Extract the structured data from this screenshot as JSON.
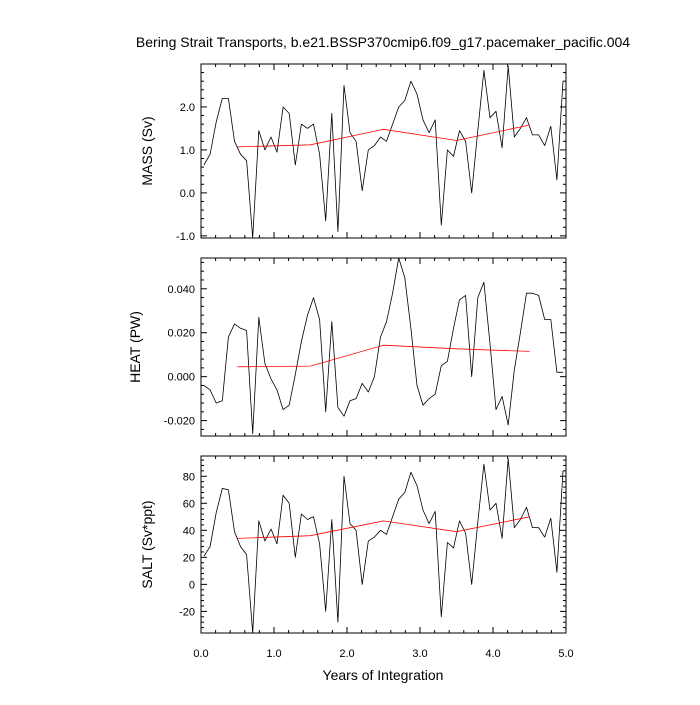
{
  "title": "Bering Strait Transports, b.e21.BSSP370cmip6.f09_g17.pacemaker_pacific.004",
  "xlabel": "Years of Integration",
  "colors": {
    "raw": "#000000",
    "smoothed": "#ff0000",
    "frame": "#000000"
  },
  "chart_data": {
    "type": "line",
    "title": "Bering Strait Transports, b.e21.BSSP370cmip6.f09_g17.pacemaker_pacific.004",
    "xlabel": "Years of Integration",
    "xlim": [
      0.0,
      5.0
    ],
    "x_ticks": [
      0.0,
      1.0,
      2.0,
      3.0,
      4.0,
      5.0
    ],
    "x_tick_labels": [
      "0.0",
      "1.0",
      "2.0",
      "3.0",
      "4.0",
      "5.0"
    ],
    "x": [
      0.0417,
      0.125,
      0.2083,
      0.2917,
      0.375,
      0.4583,
      0.5417,
      0.625,
      0.7083,
      0.7917,
      0.875,
      0.9583,
      1.0417,
      1.125,
      1.2083,
      1.2917,
      1.375,
      1.4583,
      1.5417,
      1.625,
      1.7083,
      1.7917,
      1.875,
      1.9583,
      2.0417,
      2.125,
      2.2083,
      2.2917,
      2.375,
      2.4583,
      2.5417,
      2.625,
      2.7083,
      2.7917,
      2.875,
      2.9583,
      3.0417,
      3.125,
      3.2083,
      3.2917,
      3.375,
      3.4583,
      3.5417,
      3.625,
      3.7083,
      3.7917,
      3.875,
      3.9583,
      4.0417,
      4.125,
      4.2083,
      4.2917,
      4.375,
      4.4583,
      4.5417,
      4.625,
      4.7083,
      4.7917,
      4.875,
      4.9583
    ],
    "panels": [
      {
        "ylabel": "MASS (Sv)",
        "ylim": [
          -1.05,
          3.0
        ],
        "y_ticks": [
          -1.0,
          0.0,
          1.0,
          2.0
        ],
        "y_tick_labels": [
          "-1.0",
          "0.0",
          "1.0",
          "2.0"
        ],
        "series": [
          {
            "values": [
              0.65,
              0.9,
              1.65,
              2.2,
              2.2,
              1.2,
              0.9,
              0.75,
              -1.05,
              1.45,
              1.0,
              1.3,
              0.95,
              2.0,
              1.85,
              0.65,
              1.6,
              1.5,
              1.6,
              0.9,
              -0.65,
              1.85,
              -0.9,
              2.5,
              1.4,
              1.2,
              0.05,
              1.0,
              1.1,
              1.3,
              1.2,
              1.6,
              2.0,
              2.15,
              2.6,
              2.3,
              1.7,
              1.4,
              1.7,
              -0.75,
              1.0,
              0.85,
              1.45,
              1.2,
              0.0,
              1.45,
              2.85,
              1.75,
              1.9,
              1.05,
              2.95,
              1.3,
              1.5,
              1.75,
              1.35,
              1.35,
              1.1,
              1.55,
              0.3,
              2.6
            ]
          }
        ],
        "smoothed": {
          "x": [
            0.5,
            1.5,
            2.5,
            3.5,
            4.5
          ],
          "values": [
            1.07,
            1.12,
            1.48,
            1.22,
            1.58
          ]
        }
      },
      {
        "ylabel": "HEAT (PW)",
        "ylim": [
          -0.027,
          0.054
        ],
        "y_ticks": [
          -0.02,
          0.0,
          0.02,
          0.04
        ],
        "y_tick_labels": [
          "-0.020",
          "0.000",
          "0.020",
          "0.040"
        ],
        "series": [
          {
            "values": [
              -0.004,
              -0.006,
              -0.012,
              -0.011,
              0.018,
              0.024,
              0.022,
              0.021,
              -0.026,
              0.027,
              0.006,
              -0.001,
              -0.006,
              -0.015,
              -0.013,
              0.001,
              0.016,
              0.028,
              0.036,
              0.026,
              -0.016,
              0.025,
              -0.014,
              -0.018,
              -0.011,
              -0.01,
              -0.003,
              -0.007,
              0.0,
              0.018,
              0.025,
              0.038,
              0.054,
              0.045,
              0.022,
              -0.004,
              -0.013,
              -0.01,
              -0.008,
              0.005,
              0.007,
              0.022,
              0.035,
              0.037,
              0.0,
              0.036,
              0.043,
              0.015,
              -0.015,
              -0.009,
              -0.022,
              0.003,
              0.02,
              0.038,
              0.038,
              0.037,
              0.026,
              0.026,
              0.002,
              0.002
            ]
          }
        ],
        "smoothed": {
          "x": [
            0.5,
            1.5,
            2.5,
            3.5,
            4.5
          ],
          "values": [
            0.0045,
            0.0048,
            0.0143,
            0.0127,
            0.0115
          ]
        }
      },
      {
        "ylabel": "SALT (Sv*ppt)",
        "ylim": [
          -36,
          95
        ],
        "y_ticks": [
          -20,
          0,
          20,
          40,
          60,
          80
        ],
        "y_tick_labels": [
          "-20",
          "0",
          "20",
          "40",
          "60",
          "80"
        ],
        "series": [
          {
            "values": [
              21,
              28,
              53,
              71,
              70,
              39,
              28,
              22,
              -36,
              47,
              32,
              41,
              30,
              66,
              60,
              20,
              52,
              48,
              50,
              30,
              -20,
              48,
              -28,
              80,
              45,
              40,
              0,
              32,
              35,
              40,
              37,
              50,
              63,
              68,
              83,
              73,
              55,
              45,
              54,
              -24,
              31,
              27,
              47,
              38,
              0,
              46,
              89,
              55,
              60,
              34,
              93,
              42,
              48,
              57,
              42,
              42,
              35,
              49,
              9,
              84
            ]
          }
        ],
        "smoothed": {
          "x": [
            0.5,
            1.5,
            2.5,
            3.5,
            4.5
          ],
          "values": [
            34,
            36,
            47,
            39,
            50
          ]
        }
      }
    ]
  }
}
